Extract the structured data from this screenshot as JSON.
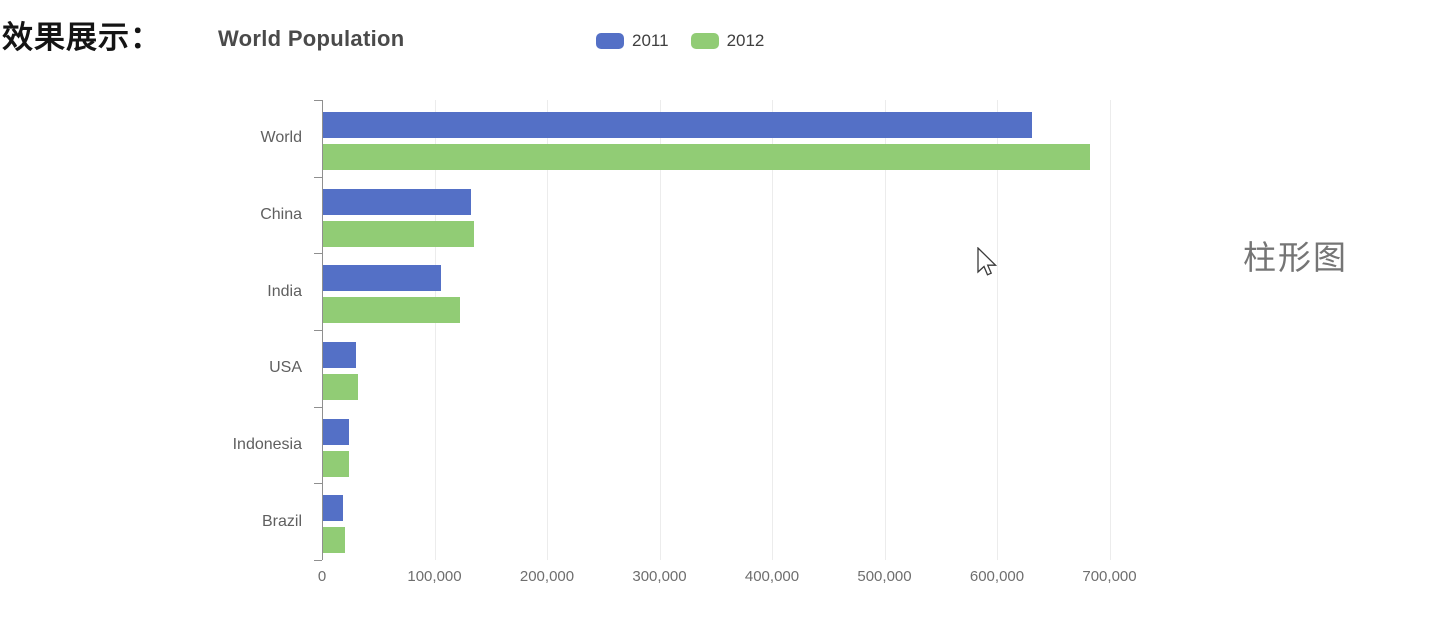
{
  "page": {
    "left_caption": "效果展示：",
    "right_caption": "柱形图"
  },
  "chart": {
    "title": "World Population"
  },
  "chart_data": {
    "type": "bar",
    "orientation": "horizontal",
    "title": "World Population",
    "categories": [
      "World",
      "China",
      "India",
      "USA",
      "Indonesia",
      "Brazil"
    ],
    "series": [
      {
        "name": "2011",
        "color": "#5470c6",
        "values": [
          630230,
          131744,
          104970,
          29034,
          23489,
          18203
        ]
      },
      {
        "name": "2012",
        "color": "#91cc75",
        "values": [
          681807,
          134141,
          121594,
          31000,
          23438,
          19325
        ]
      }
    ],
    "x_ticks": [
      "0",
      "100,000",
      "200,000",
      "300,000",
      "400,000",
      "500,000",
      "600,000",
      "700,000"
    ],
    "xlim": [
      0,
      700000
    ],
    "xlabel": "",
    "ylabel": "",
    "grid": true,
    "legend_position": "top",
    "axis_color": "#8f8f8f",
    "gridline_color": "#ececec"
  }
}
